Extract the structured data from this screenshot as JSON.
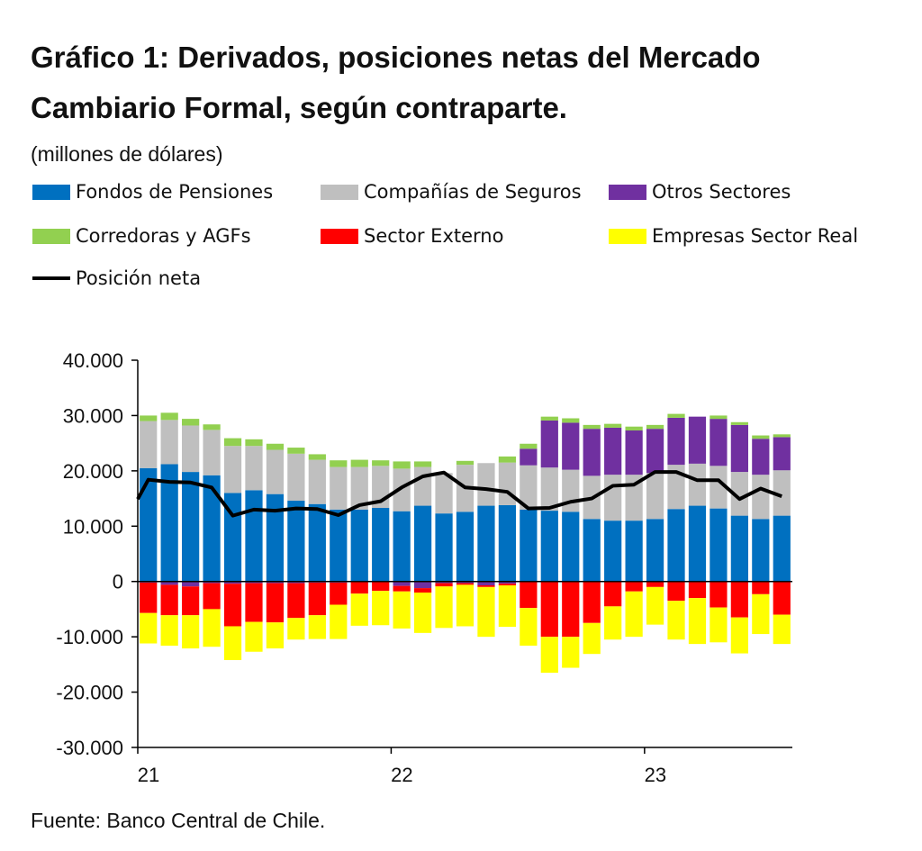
{
  "chart_data": {
    "type": "bar",
    "stacked": true,
    "title": "Gráfico 1: Derivados, posiciones netas del Mercado Cambiario Formal, según contraparte.",
    "subtitle": "(millones de dólares)",
    "source": "Fuente: Banco Central de Chile.",
    "xlabel": "",
    "ylabel": "",
    "ylim": [
      -30000,
      40000
    ],
    "yticks": [
      {
        "value": 40000,
        "label": "40.000"
      },
      {
        "value": 30000,
        "label": "30.000"
      },
      {
        "value": 20000,
        "label": "20.000"
      },
      {
        "value": 10000,
        "label": "10.000"
      },
      {
        "value": 0,
        "label": "0"
      },
      {
        "value": -10000,
        "label": "-10.000"
      },
      {
        "value": -20000,
        "label": "-20.000"
      },
      {
        "value": -30000,
        "label": "-30.000"
      }
    ],
    "xticks": [
      {
        "index": 0,
        "label": "21"
      },
      {
        "index": 12,
        "label": "22"
      },
      {
        "index": 24,
        "label": "23"
      }
    ],
    "grid": false,
    "legend_position": "top",
    "categories": [
      "2021-01",
      "2021-02",
      "2021-03",
      "2021-04",
      "2021-05",
      "2021-06",
      "2021-07",
      "2021-08",
      "2021-09",
      "2021-10",
      "2021-11",
      "2021-12",
      "2022-01",
      "2022-02",
      "2022-03",
      "2022-04",
      "2022-05",
      "2022-06",
      "2022-07",
      "2022-08",
      "2022-09",
      "2022-10",
      "2022-11",
      "2022-12",
      "2023-01",
      "2023-02",
      "2023-03",
      "2023-04",
      "2023-05",
      "2023-06",
      "2023-07"
    ],
    "series": [
      {
        "name": "Fondos de Pensiones",
        "color": "#0070C0",
        "values": [
          20500,
          21200,
          19800,
          19200,
          16000,
          16500,
          15800,
          14600,
          14000,
          13000,
          13000,
          13300,
          12700,
          13700,
          12300,
          12600,
          13700,
          13800,
          13000,
          12800,
          12600,
          11300,
          11000,
          11000,
          11300,
          13100,
          13700,
          13200,
          11900,
          11300,
          11900
        ]
      },
      {
        "name": "Compañías de Seguros",
        "color": "#BFBFBF",
        "values": [
          8500,
          8000,
          8400,
          8200,
          8500,
          8000,
          8000,
          8500,
          8000,
          7700,
          7700,
          7600,
          7700,
          7000,
          7300,
          8500,
          7700,
          7700,
          8000,
          7800,
          7600,
          7800,
          8300,
          8300,
          8300,
          8000,
          7600,
          7700,
          7900,
          8000,
          8200
        ]
      },
      {
        "name": "Otros Sectores",
        "color": "#7030A0",
        "values": [
          -200,
          -600,
          -900,
          -300,
          -400,
          -300,
          -300,
          -300,
          -200,
          -200,
          0,
          0,
          -800,
          -1200,
          -300,
          -300,
          -700,
          -400,
          3000,
          8500,
          8500,
          8500,
          8500,
          8000,
          8000,
          8500,
          8500,
          8500,
          8500,
          6500,
          6000
        ]
      },
      {
        "name": "Corredoras y AGFs",
        "color": "#92D050",
        "values": [
          1000,
          1300,
          1200,
          1000,
          1400,
          1200,
          1100,
          1100,
          1000,
          1200,
          1300,
          1000,
          1300,
          1000,
          0,
          700,
          0,
          1100,
          900,
          700,
          800,
          700,
          700,
          700,
          700,
          700,
          0,
          600,
          500,
          600,
          500
        ]
      },
      {
        "name": "Sector Externo",
        "color": "#FF0000",
        "values": [
          -5500,
          -5500,
          -5200,
          -4700,
          -7700,
          -7000,
          -7100,
          -6300,
          -5900,
          -4000,
          -2200,
          -1700,
          -1000,
          -800,
          -600,
          -300,
          -300,
          -300,
          -4800,
          -10000,
          -10000,
          -7500,
          -4500,
          -1800,
          -1000,
          -3500,
          -3000,
          -4700,
          -6500,
          -2300,
          -6000
        ]
      },
      {
        "name": "Empresas Sector Real",
        "color": "#FFFF00",
        "values": [
          -5500,
          -5500,
          -6000,
          -6800,
          -6100,
          -5400,
          -4700,
          -3900,
          -4300,
          -6200,
          -5800,
          -6200,
          -6700,
          -7300,
          -7500,
          -7500,
          -9000,
          -7500,
          -6800,
          -6500,
          -5600,
          -5600,
          -6000,
          -8200,
          -6800,
          -7000,
          -8300,
          -6300,
          -6500,
          -7200,
          -5300
        ]
      },
      {
        "name": "Posición neta",
        "color": "#000000",
        "type": "line",
        "values": [
          18400,
          18000,
          17900,
          17000,
          11900,
          13000,
          12800,
          13200,
          13100,
          12000,
          13800,
          14500,
          17000,
          19000,
          19700,
          17000,
          16700,
          16200,
          13200,
          13300,
          14400,
          15000,
          17300,
          17500,
          19800,
          19800,
          18300,
          18300,
          14900,
          16800,
          15400
        ]
      }
    ]
  }
}
